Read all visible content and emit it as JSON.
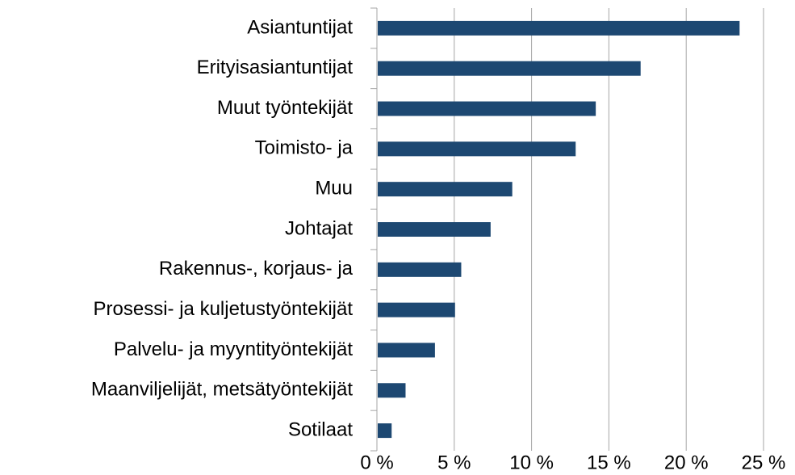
{
  "chart_data": {
    "type": "bar",
    "orientation": "horizontal",
    "categories": [
      "Asiantuntijat",
      "Erityisasiantuntijat",
      "Muut työntekijät",
      "Toimisto- ja",
      "Muu",
      "Johtajat",
      "Rakennus-, korjaus- ja",
      "Prosessi- ja kuljetustyöntekijät",
      "Palvelu- ja myyntityöntekijät",
      "Maanviljelijät, metsätyöntekijät",
      "Sotilaat"
    ],
    "values": [
      23.4,
      17.0,
      14.1,
      12.8,
      8.7,
      7.3,
      5.4,
      5.0,
      3.7,
      1.8,
      0.9
    ],
    "color": "#1d4872",
    "xlim": [
      0,
      25
    ],
    "xticks": [
      {
        "value": 0,
        "label": "0 %"
      },
      {
        "value": 5,
        "label": "5 %"
      },
      {
        "value": 10,
        "label": "10 %"
      },
      {
        "value": 15,
        "label": "15 %"
      },
      {
        "value": 20,
        "label": "20 %"
      },
      {
        "value": 25,
        "label": "25 %"
      }
    ],
    "grid": true
  }
}
